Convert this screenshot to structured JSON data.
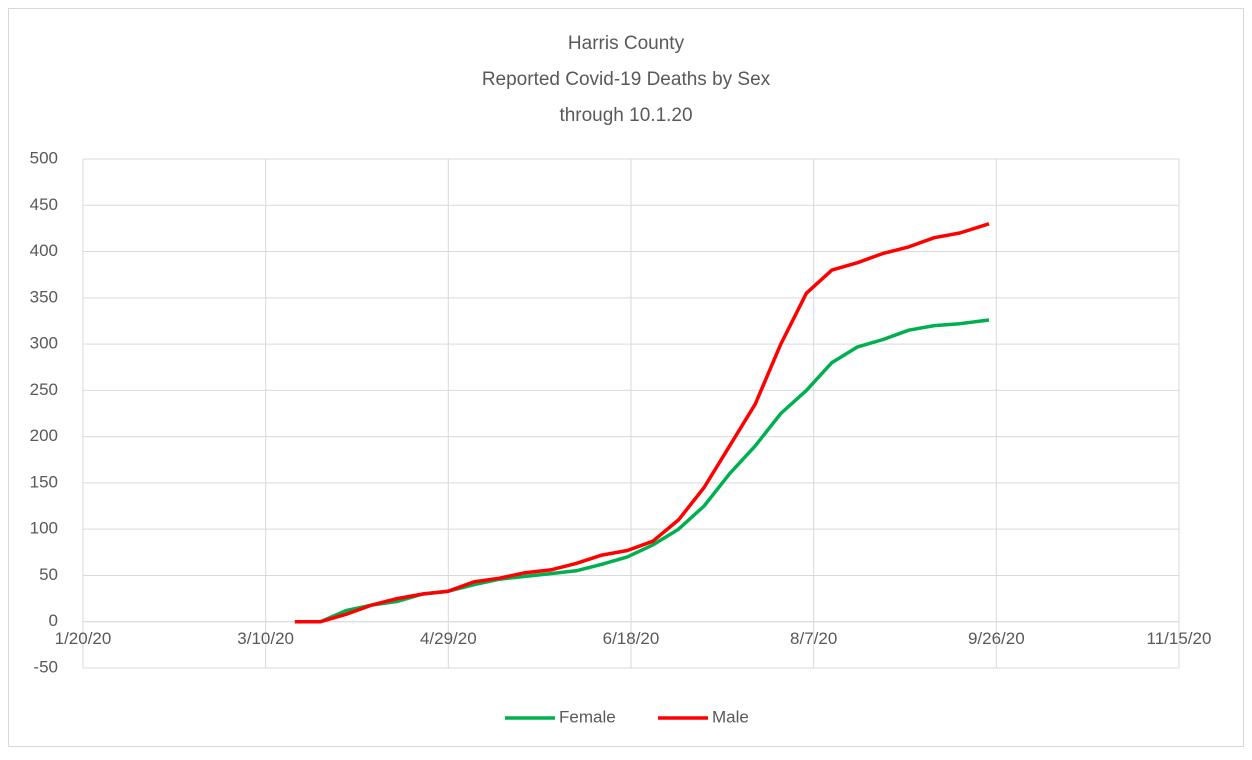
{
  "chart_data": {
    "type": "line",
    "title": [
      "Harris County",
      "Reported Covid-19 Deaths by Sex",
      "through 10.1.20"
    ],
    "x": [
      "3/18/20",
      "3/25/20",
      "4/1/20",
      "4/8/20",
      "4/15/20",
      "4/22/20",
      "4/29/20",
      "5/6/20",
      "5/13/20",
      "5/20/20",
      "5/27/20",
      "6/3/20",
      "6/10/20",
      "6/17/20",
      "6/24/20",
      "7/1/20",
      "7/8/20",
      "7/15/20",
      "7/22/20",
      "7/29/20",
      "8/5/20",
      "8/12/20",
      "8/19/20",
      "8/26/20",
      "9/2/20",
      "9/9/20",
      "9/16/20",
      "9/24/20"
    ],
    "series": [
      {
        "name": "Female",
        "color": "#00b050",
        "values": [
          0,
          0,
          12,
          18,
          22,
          30,
          33,
          40,
          46,
          49,
          52,
          55,
          62,
          70,
          83,
          100,
          125,
          160,
          190,
          225,
          250,
          280,
          297,
          305,
          315,
          320,
          322,
          326
        ]
      },
      {
        "name": "Male",
        "color": "#ff0000",
        "values": [
          0,
          0,
          8,
          18,
          25,
          30,
          33,
          43,
          47,
          53,
          56,
          63,
          72,
          77,
          87,
          110,
          145,
          190,
          235,
          300,
          355,
          380,
          388,
          398,
          405,
          415,
          420,
          430
        ]
      }
    ],
    "xlim": [
      "1/20/20",
      "11/15/20"
    ],
    "xticks": [
      "1/20/20",
      "3/10/20",
      "4/29/20",
      "6/18/20",
      "8/7/20",
      "9/26/20",
      "11/15/20"
    ],
    "ylim": [
      -50,
      500
    ],
    "yticks": [
      -50,
      0,
      50,
      100,
      150,
      200,
      250,
      300,
      350,
      400,
      450,
      500
    ],
    "grid": true,
    "legend": "bottom"
  }
}
